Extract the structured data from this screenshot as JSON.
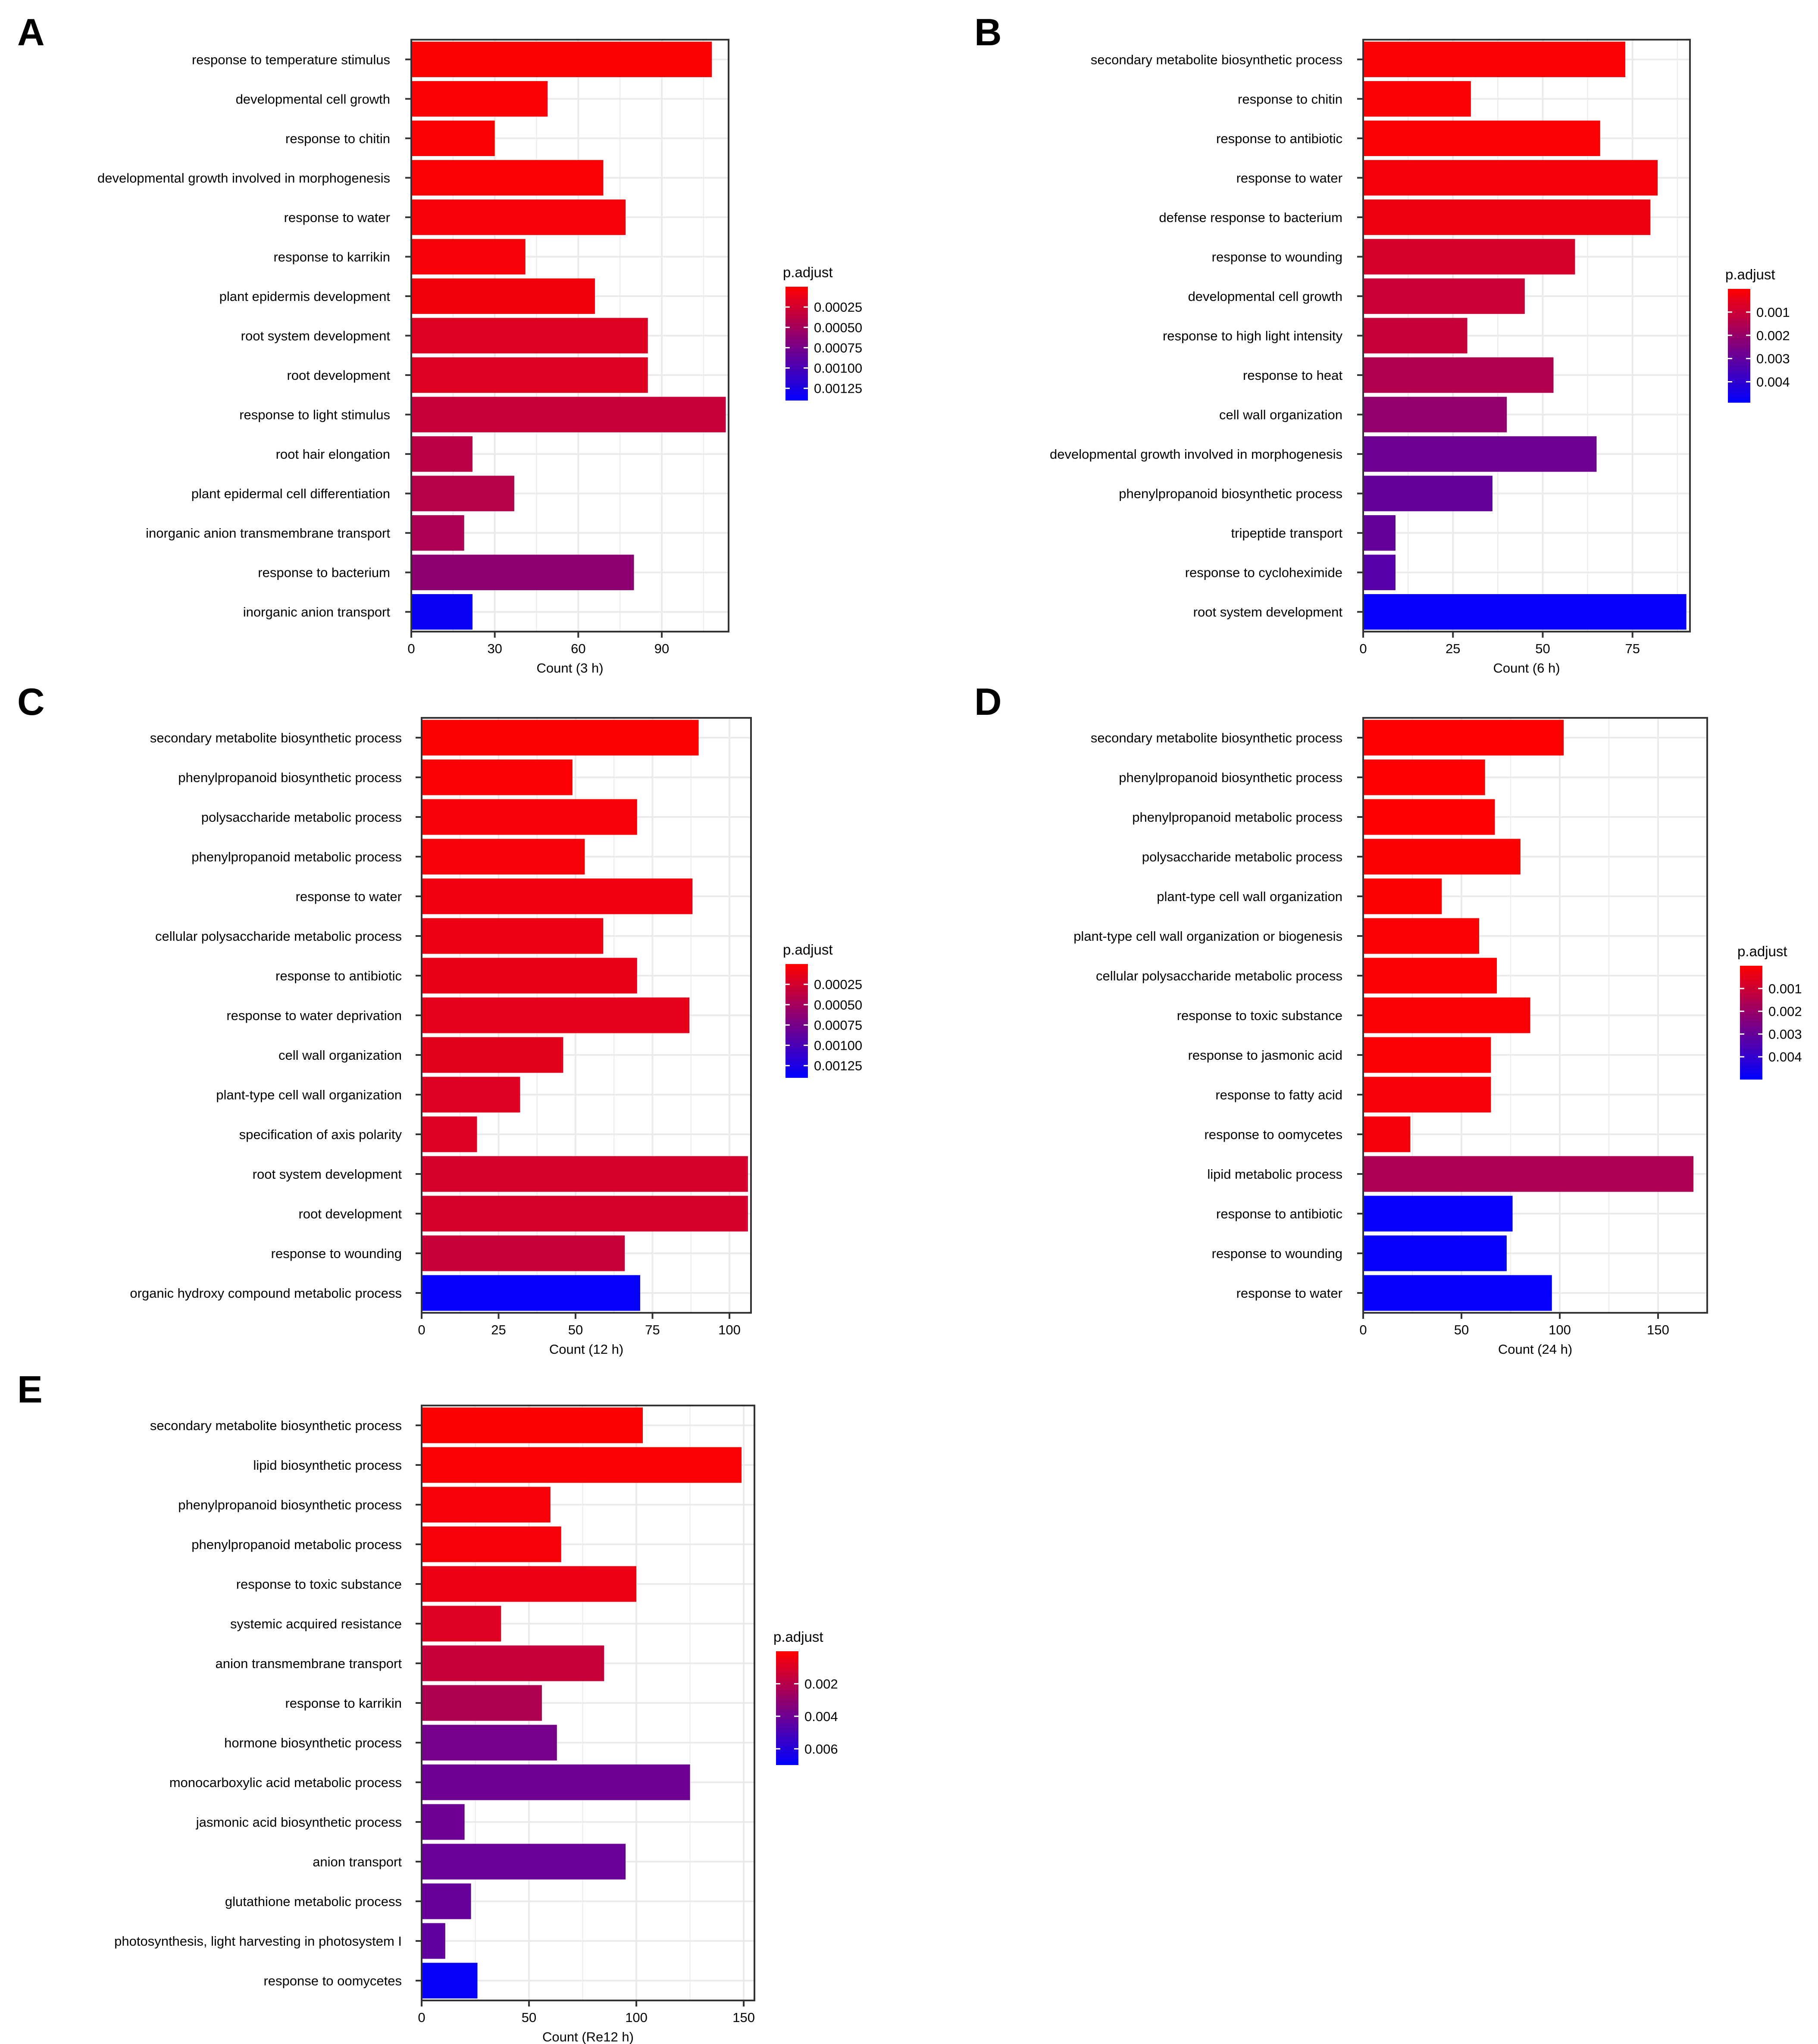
{
  "legend_title": "p.adjust",
  "chart_data": [
    {
      "type": "bar",
      "orientation": "horizontal",
      "panel_label": "A",
      "xlabel": "Count (3 h)",
      "xlim": [
        0,
        114
      ],
      "xticks": [
        0,
        30,
        60,
        90
      ],
      "categories": [
        "response to temperature stimulus",
        "developmental cell growth",
        "response to chitin",
        "developmental growth involved in morphogenesis",
        "response to water",
        "response to karrikin",
        "plant epidermis development",
        "root system development",
        "root development",
        "response to light stimulus",
        "root hair elongation",
        "plant epidermal cell differentiation",
        "inorganic anion transmembrane transport",
        "response to bacterium",
        "inorganic anion transport"
      ],
      "values": [
        108,
        49,
        30,
        69,
        77,
        41,
        66,
        85,
        85,
        113,
        22,
        37,
        19,
        80,
        22
      ],
      "p_adjust": [
        1e-05,
        2e-05,
        2e-05,
        3e-05,
        4e-05,
        5e-05,
        6e-05,
        0.00018,
        0.00018,
        0.00032,
        0.00038,
        0.0004,
        0.00045,
        0.00062,
        0.00135
      ],
      "legend": {
        "title": "p.adjust",
        "ticks": [
          0.00025,
          0.0005,
          0.00075,
          0.001,
          0.00125
        ],
        "tick_labels": [
          "0.00025",
          "0.00050",
          "0.00075",
          "0.00100",
          "0.00125"
        ],
        "range": [
          0.0,
          0.0014
        ]
      }
    },
    {
      "type": "bar",
      "orientation": "horizontal",
      "panel_label": "B",
      "xlabel": "Count (6 h)",
      "xlim": [
        0,
        91
      ],
      "xticks": [
        0,
        25,
        50,
        75
      ],
      "categories": [
        "secondary metabolite biosynthetic process",
        "response to chitin",
        "response to antibiotic",
        "response to water",
        "defense response to bacterium",
        "response to wounding",
        "developmental cell growth",
        "response to high light intensity",
        "response to heat",
        "cell wall organization",
        "developmental growth involved in morphogenesis",
        "phenylpropanoid biosynthetic process",
        "tripeptide transport",
        "response to cycloheximide",
        "root system development"
      ],
      "values": [
        73,
        30,
        66,
        82,
        80,
        59,
        45,
        29,
        53,
        40,
        65,
        36,
        9,
        9,
        90
      ],
      "p_adjust": [
        5e-05,
        8e-05,
        0.0001,
        0.0002,
        0.0003,
        0.0008,
        0.001,
        0.0011,
        0.0015,
        0.0021,
        0.0028,
        0.003,
        0.003,
        0.0032,
        0.0048
      ],
      "legend": {
        "title": "p.adjust",
        "ticks": [
          0.001,
          0.002,
          0.003,
          0.004
        ],
        "tick_labels": [
          "0.001",
          "0.002",
          "0.003",
          "0.004"
        ],
        "range": [
          0.0,
          0.0049
        ]
      }
    },
    {
      "type": "bar",
      "orientation": "horizontal",
      "panel_label": "C",
      "xlabel": "Count (12 h)",
      "xlim": [
        0,
        107
      ],
      "xticks": [
        0,
        25,
        50,
        75,
        100
      ],
      "categories": [
        "secondary metabolite biosynthetic process",
        "phenylpropanoid biosynthetic process",
        "polysaccharide metabolic process",
        "phenylpropanoid metabolic process",
        "response to water",
        "cellular polysaccharide metabolic process",
        "response to antibiotic",
        "response to water deprivation",
        "cell wall organization",
        "plant‑type cell wall organization",
        "specification of axis polarity",
        "root system development",
        "root development",
        "response to wounding",
        "organic hydroxy compound metabolic process"
      ],
      "values": [
        90,
        49,
        70,
        53,
        88,
        59,
        70,
        87,
        46,
        32,
        18,
        106,
        106,
        66,
        71
      ],
      "p_adjust": [
        1e-05,
        2e-05,
        4e-05,
        4e-05,
        8e-05,
        0.0001,
        0.00012,
        0.00014,
        0.00016,
        0.00018,
        0.0002,
        0.00024,
        0.00024,
        0.0003,
        0.00138
      ],
      "legend": {
        "title": "p.adjust",
        "ticks": [
          0.00025,
          0.0005,
          0.00075,
          0.001,
          0.00125
        ],
        "tick_labels": [
          "0.00025",
          "0.00050",
          "0.00075",
          "0.00100",
          "0.00125"
        ],
        "range": [
          0.0,
          0.0014
        ]
      }
    },
    {
      "type": "bar",
      "orientation": "horizontal",
      "panel_label": "D",
      "xlabel": "Count (24 h)",
      "xlim": [
        0,
        175
      ],
      "xticks": [
        0,
        50,
        100,
        150
      ],
      "categories": [
        "secondary metabolite biosynthetic process",
        "phenylpropanoid biosynthetic process",
        "phenylpropanoid metabolic process",
        "polysaccharide metabolic process",
        "plant‑type cell wall organization",
        "plant‑type cell wall organization or biogenesis",
        "cellular polysaccharide metabolic process",
        "response to toxic substance",
        "response to jasmonic acid",
        "response to fatty acid",
        "response to oomycetes",
        "lipid metabolic process",
        "response to antibiotic",
        "response to wounding",
        "response to water"
      ],
      "values": [
        102,
        62,
        67,
        80,
        40,
        59,
        68,
        85,
        65,
        65,
        24,
        168,
        76,
        73,
        96
      ],
      "p_adjust": [
        1e-05,
        2e-05,
        2e-05,
        3e-05,
        4e-05,
        5e-05,
        6e-05,
        0.0001,
        0.00012,
        0.00015,
        0.0002,
        0.0016,
        0.0049,
        0.0049,
        0.0049
      ],
      "legend": {
        "title": "p.adjust",
        "ticks": [
          0.001,
          0.002,
          0.003,
          0.004
        ],
        "tick_labels": [
          "0.001",
          "0.002",
          "0.003",
          "0.004"
        ],
        "range": [
          0.0,
          0.005
        ]
      }
    },
    {
      "type": "bar",
      "orientation": "horizontal",
      "panel_label": "E",
      "xlabel": "Count (Re12 h)",
      "xlim": [
        0,
        155
      ],
      "xticks": [
        0,
        50,
        100,
        150
      ],
      "categories": [
        "secondary metabolite biosynthetic process",
        "lipid biosynthetic process",
        "phenylpropanoid biosynthetic  process",
        "phenylpropanoid metabolic  process",
        "response to toxic substance",
        "systemic acquired resistance",
        "anion transmembrane transport",
        "response to karrikin",
        "hormone biosynthetic process",
        "monocarboxylic acid  metabolic process",
        "jasmonic acid biosynthetic process",
        "anion transport",
        "glutathione metabolic process",
        "photosynthesis, light harvesting in photosystem I",
        "response to oomycetes"
      ],
      "values": [
        103,
        149,
        60,
        65,
        100,
        37,
        85,
        56,
        63,
        125,
        20,
        95,
        23,
        11,
        26
      ],
      "p_adjust": [
        5e-05,
        0.0001,
        0.0002,
        0.0002,
        0.0005,
        0.0009,
        0.0016,
        0.0022,
        0.0038,
        0.004,
        0.004,
        0.0041,
        0.0042,
        0.0043,
        0.0068
      ],
      "legend": {
        "title": "p.adjust",
        "ticks": [
          0.002,
          0.004,
          0.006
        ],
        "tick_labels": [
          "0.002",
          "0.004",
          "0.006"
        ],
        "range": [
          0.0,
          0.007
        ]
      }
    }
  ]
}
